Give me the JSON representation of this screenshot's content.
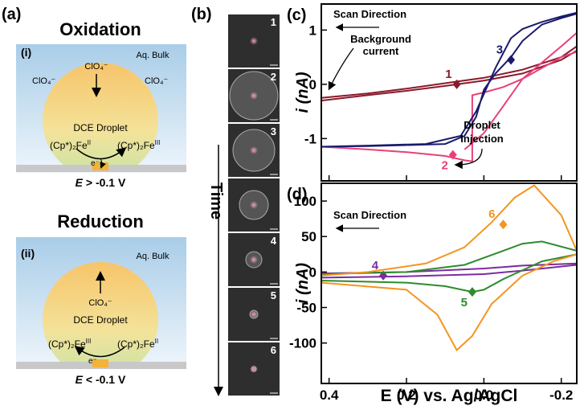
{
  "panels": {
    "a": {
      "label": "(a)",
      "ox": {
        "title": "Oxidation",
        "tag": "(i)",
        "bulk": "Aq. Bulk",
        "anion": "ClO₄⁻",
        "droplet": "DCE Droplet",
        "left": {
          "base": "(Cp*)₂Fe",
          "sup": "II"
        },
        "right": {
          "base": "(Cp*)₂Fe",
          "sup": "III"
        },
        "electron": "e⁻",
        "cond": {
          "sym": "E",
          "text": " > -0.1 V"
        }
      },
      "red": {
        "title": "Reduction",
        "tag": "(ii)",
        "bulk": "Aq. Bulk",
        "anion": "ClO₄⁻",
        "droplet": "DCE Droplet",
        "left": {
          "base": "(Cp*)₂Fe",
          "sup": "III"
        },
        "right": {
          "base": "(Cp*)₂Fe",
          "sup": "II"
        },
        "electron": "e⁻",
        "cond": {
          "sym": "E",
          "text": " < -0.1 V"
        }
      }
    },
    "b": {
      "label": "(b)",
      "axis": "Time",
      "frames": [
        "1",
        "2",
        "3",
        null,
        "4",
        "5",
        "6"
      ]
    }
  },
  "chart_data": [
    {
      "type": "line",
      "label": "(c)",
      "y_label": "i (nA)",
      "xlim": [
        0.42,
        -0.24
      ],
      "ylim": [
        -1.78,
        1.48
      ],
      "xticks": [
        0.4,
        0.2,
        {
          "value": 0,
          "label": "0.0"
        },
        -0.2
      ],
      "xtick_labels": false,
      "yticks": [
        -1,
        0,
        1
      ],
      "annotations": [
        "Scan Direction",
        "Background",
        "current",
        "Droplet",
        "Injection"
      ],
      "series": [
        {
          "name": "1",
          "color": "#8b1a2b",
          "x": [
            0.42,
            0.3,
            0.2,
            0.1,
            0,
            -0.1,
            -0.2,
            -0.24,
            -0.24,
            -0.2,
            -0.1,
            0,
            0.1,
            0.2,
            0.3,
            0.42
          ],
          "values": [
            -0.3,
            -0.2,
            -0.12,
            -0.03,
            0.07,
            0.2,
            0.45,
            0.62,
            0.7,
            0.5,
            0.27,
            0.12,
            0.02,
            -0.08,
            -0.17,
            -0.25
          ],
          "marker": {
            "x": 0.07,
            "y": 0
          }
        },
        {
          "name": "2",
          "color": "#e8407a",
          "x": [
            0.42,
            0.3,
            0.2,
            0.1,
            0.05,
            0.03,
            0.03,
            0,
            -0.05,
            -0.1,
            -0.15,
            -0.2,
            -0.24,
            -0.24,
            -0.2,
            -0.15,
            -0.1,
            -0.05,
            0,
            0.05
          ],
          "values": [
            -1.15,
            -1.2,
            -1.25,
            -1.32,
            -1.4,
            -1.42,
            -0.2,
            -0.15,
            -0.05,
            0.1,
            0.3,
            0.5,
            0.6,
            0.95,
            0.7,
            0.4,
            0.1,
            -0.4,
            -0.9,
            -1.2
          ],
          "marker": {
            "x": 0.08,
            "y": -1.3
          }
        },
        {
          "name": "3",
          "color": "#1a1a6e",
          "x": [
            0.42,
            0.3,
            0.2,
            0.1,
            0.05,
            0.02,
            0,
            -0.03,
            -0.07,
            -0.1,
            -0.15,
            -0.2,
            -0.24,
            -0.24,
            -0.2,
            -0.15,
            -0.1,
            -0.07,
            -0.03,
            0.02,
            0.06,
            0.15,
            0.3,
            0.42
          ],
          "values": [
            -1.15,
            -1.14,
            -1.12,
            -1.1,
            -0.95,
            -0.6,
            -0.1,
            0.2,
            0.5,
            0.8,
            1.1,
            1.22,
            1.3,
            1.32,
            1.25,
            1.15,
            1.02,
            0.85,
            0.3,
            -0.5,
            -0.95,
            -1.1,
            -1.13,
            -1.15
          ],
          "marker": {
            "x": -0.07,
            "y": 0.45
          }
        }
      ]
    },
    {
      "type": "line",
      "label": "(d)",
      "y_label": "i (nA)",
      "x_label": "E (V) vs. Ag/AgCl",
      "xlim": [
        0.42,
        -0.24
      ],
      "ylim": [
        -157,
        125
      ],
      "xticks": [
        0.4,
        0.2,
        {
          "value": 0,
          "label": "0.0"
        },
        -0.2
      ],
      "xtick_labels": true,
      "yticks": [
        -100,
        -50,
        0,
        50,
        100
      ],
      "annotations": [
        "Scan Direction"
      ],
      "series": [
        {
          "name": "4",
          "color": "#7b2d9e",
          "x": [
            0.42,
            0.2,
            0,
            -0.1,
            -0.24,
            -0.24,
            -0.1,
            0,
            0.2,
            0.42
          ],
          "values": [
            -8,
            -6,
            -3,
            2,
            10,
            12,
            9,
            5,
            0,
            -2
          ],
          "marker": {
            "x": 0.26,
            "y": -5
          }
        },
        {
          "name": "5",
          "color": "#2e8b2e",
          "x": [
            0.42,
            0.2,
            0.1,
            0.03,
            0,
            -0.05,
            -0.15,
            -0.24,
            -0.24,
            -0.15,
            -0.1,
            -0.05,
            0.05,
            0.2,
            0.42
          ],
          "values": [
            -12,
            -15,
            -20,
            -28,
            -25,
            -10,
            15,
            25,
            30,
            43,
            40,
            30,
            10,
            0,
            -3
          ],
          "marker": {
            "x": 0.03,
            "y": -28
          }
        },
        {
          "name": "6",
          "color": "#f5951f",
          "x": [
            0.42,
            0.2,
            0.12,
            0.07,
            0.03,
            -0.02,
            -0.1,
            -0.18,
            -0.24,
            -0.24,
            -0.2,
            -0.13,
            -0.08,
            -0.02,
            0.05,
            0.15,
            0.3,
            0.42
          ],
          "values": [
            -15,
            -25,
            -60,
            -110,
            -90,
            -45,
            -5,
            15,
            25,
            30,
            80,
            122,
            105,
            70,
            35,
            12,
            0,
            -5
          ],
          "marker": {
            "x": -0.05,
            "y": 67
          }
        }
      ]
    }
  ]
}
